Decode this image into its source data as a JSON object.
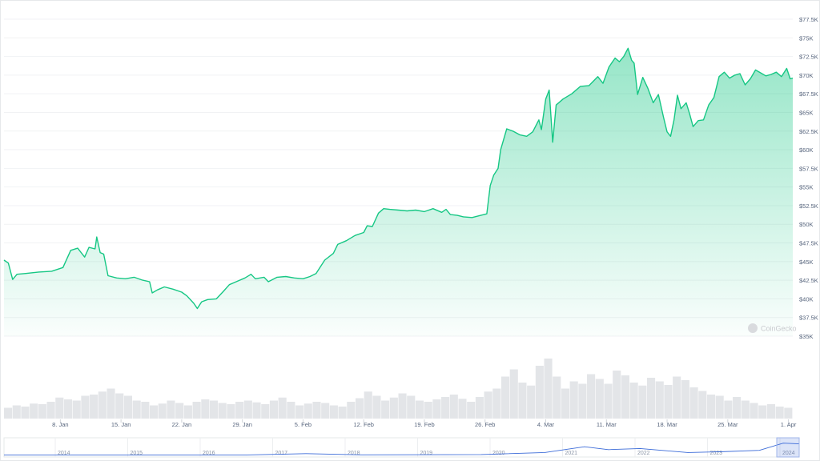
{
  "chart_data": {
    "type": "area",
    "title": "",
    "xlabel": "",
    "ylabel": "",
    "ylim": [
      35000,
      77500
    ],
    "y_ticks": [
      "$35K",
      "$37.5K",
      "$40K",
      "$42.5K",
      "$45K",
      "$47.5K",
      "$50K",
      "$52.5K",
      "$55K",
      "$57.5K",
      "$60K",
      "$62.5K",
      "$65K",
      "$67.5K",
      "$70K",
      "$72.5K",
      "$75K",
      "$77.5K"
    ],
    "y_tick_values": [
      35000,
      37500,
      40000,
      42500,
      45000,
      47500,
      50000,
      52500,
      55000,
      57500,
      60000,
      62500,
      65000,
      67500,
      70000,
      72500,
      75000,
      77500
    ],
    "x_ticks": [
      {
        "label": "8. Jan",
        "day": 8
      },
      {
        "label": "15. Jan",
        "day": 15
      },
      {
        "label": "22. Jan",
        "day": 22
      },
      {
        "label": "29. Jan",
        "day": 29
      },
      {
        "label": "5. Feb",
        "day": 36
      },
      {
        "label": "12. Feb",
        "day": 43
      },
      {
        "label": "19. Feb",
        "day": 50
      },
      {
        "label": "26. Feb",
        "day": 57
      },
      {
        "label": "4. Mar",
        "day": 64
      },
      {
        "label": "11. Mar",
        "day": 71
      },
      {
        "label": "18. Mar",
        "day": 78
      },
      {
        "label": "25. Mar",
        "day": 85
      },
      {
        "label": "1. Apr",
        "day": 92
      }
    ],
    "x_range_days": [
      1.5,
      92.5
    ],
    "series": [
      {
        "color": "#16c784",
        "points": [
          [
            1.5,
            45200
          ],
          [
            2.0,
            44800
          ],
          [
            2.5,
            42600
          ],
          [
            3.0,
            43300
          ],
          [
            4.0,
            43400
          ],
          [
            5.5,
            43600
          ],
          [
            7.0,
            43700
          ],
          [
            7.8,
            44000
          ],
          [
            8.3,
            44200
          ],
          [
            9.2,
            46500
          ],
          [
            10.0,
            46800
          ],
          [
            10.8,
            45600
          ],
          [
            11.3,
            46900
          ],
          [
            12.0,
            46700
          ],
          [
            12.2,
            48300
          ],
          [
            12.6,
            46200
          ],
          [
            13.0,
            46000
          ],
          [
            13.5,
            43100
          ],
          [
            14.5,
            42800
          ],
          [
            15.5,
            42700
          ],
          [
            16.5,
            42900
          ],
          [
            17.5,
            42500
          ],
          [
            18.3,
            42300
          ],
          [
            18.6,
            40800
          ],
          [
            19.2,
            41200
          ],
          [
            20.0,
            41600
          ],
          [
            21.0,
            41300
          ],
          [
            22.0,
            40900
          ],
          [
            22.6,
            40400
          ],
          [
            23.4,
            39400
          ],
          [
            23.8,
            38700
          ],
          [
            24.3,
            39600
          ],
          [
            25.0,
            39900
          ],
          [
            26.0,
            40000
          ],
          [
            26.8,
            41000
          ],
          [
            27.5,
            41900
          ],
          [
            28.5,
            42400
          ],
          [
            29.3,
            42800
          ],
          [
            30.0,
            43300
          ],
          [
            30.5,
            42700
          ],
          [
            31.5,
            42900
          ],
          [
            32.0,
            42300
          ],
          [
            33.0,
            42900
          ],
          [
            34.0,
            43000
          ],
          [
            35.0,
            42800
          ],
          [
            36.0,
            42700
          ],
          [
            36.8,
            43000
          ],
          [
            37.5,
            43400
          ],
          [
            38.5,
            45200
          ],
          [
            39.5,
            46100
          ],
          [
            40.0,
            47300
          ],
          [
            41.0,
            47800
          ],
          [
            42.0,
            48500
          ],
          [
            43.0,
            48900
          ],
          [
            43.4,
            49800
          ],
          [
            44.0,
            49700
          ],
          [
            44.7,
            51500
          ],
          [
            45.3,
            52100
          ],
          [
            46.0,
            52000
          ],
          [
            47.0,
            51900
          ],
          [
            48.0,
            51800
          ],
          [
            49.0,
            51900
          ],
          [
            50.0,
            51700
          ],
          [
            51.0,
            52100
          ],
          [
            52.0,
            51600
          ],
          [
            52.5,
            52000
          ],
          [
            53.0,
            51300
          ],
          [
            53.8,
            51200
          ],
          [
            54.5,
            51000
          ],
          [
            55.5,
            50900
          ],
          [
            56.5,
            51200
          ],
          [
            57.2,
            51400
          ],
          [
            57.6,
            55200
          ],
          [
            58.0,
            56600
          ],
          [
            58.5,
            57500
          ],
          [
            58.8,
            60000
          ],
          [
            59.5,
            62800
          ],
          [
            60.2,
            62500
          ],
          [
            61.0,
            62000
          ],
          [
            61.8,
            61800
          ],
          [
            62.5,
            62400
          ],
          [
            63.2,
            64000
          ],
          [
            63.5,
            62700
          ],
          [
            64.0,
            66800
          ],
          [
            64.4,
            68000
          ],
          [
            64.8,
            61000
          ],
          [
            65.2,
            66000
          ],
          [
            66.0,
            66800
          ],
          [
            67.0,
            67500
          ],
          [
            68.0,
            68500
          ],
          [
            69.0,
            68600
          ],
          [
            70.0,
            69800
          ],
          [
            70.6,
            68900
          ],
          [
            71.3,
            71100
          ],
          [
            72.0,
            72300
          ],
          [
            72.5,
            71800
          ],
          [
            73.0,
            72500
          ],
          [
            73.5,
            73600
          ],
          [
            73.9,
            72000
          ],
          [
            74.2,
            71600
          ],
          [
            74.6,
            67400
          ],
          [
            75.2,
            69700
          ],
          [
            75.8,
            68200
          ],
          [
            76.4,
            66300
          ],
          [
            77.0,
            67400
          ],
          [
            77.6,
            64300
          ],
          [
            78.0,
            62400
          ],
          [
            78.4,
            61800
          ],
          [
            78.8,
            64000
          ],
          [
            79.2,
            67300
          ],
          [
            79.6,
            65500
          ],
          [
            80.2,
            66300
          ],
          [
            80.6,
            64800
          ],
          [
            81.0,
            63100
          ],
          [
            81.6,
            63900
          ],
          [
            82.2,
            64000
          ],
          [
            82.8,
            66000
          ],
          [
            83.4,
            67000
          ],
          [
            84.0,
            69800
          ],
          [
            84.6,
            70400
          ],
          [
            85.2,
            69600
          ],
          [
            85.8,
            70000
          ],
          [
            86.4,
            70200
          ],
          [
            87.0,
            68700
          ],
          [
            87.6,
            69500
          ],
          [
            88.2,
            70700
          ],
          [
            88.8,
            70300
          ],
          [
            89.4,
            69900
          ],
          [
            90.0,
            70100
          ],
          [
            90.6,
            70400
          ],
          [
            91.2,
            69800
          ],
          [
            91.8,
            70900
          ],
          [
            92.2,
            69500
          ],
          [
            92.5,
            69600
          ]
        ]
      }
    ],
    "volume_series": [
      0.18,
      0.22,
      0.2,
      0.25,
      0.24,
      0.28,
      0.35,
      0.32,
      0.3,
      0.38,
      0.4,
      0.45,
      0.5,
      0.42,
      0.38,
      0.3,
      0.28,
      0.22,
      0.25,
      0.3,
      0.26,
      0.22,
      0.28,
      0.32,
      0.3,
      0.26,
      0.24,
      0.28,
      0.3,
      0.27,
      0.24,
      0.3,
      0.35,
      0.28,
      0.22,
      0.25,
      0.28,
      0.26,
      0.22,
      0.2,
      0.28,
      0.34,
      0.45,
      0.38,
      0.3,
      0.35,
      0.42,
      0.38,
      0.3,
      0.28,
      0.32,
      0.36,
      0.4,
      0.33,
      0.28,
      0.36,
      0.45,
      0.5,
      0.7,
      0.82,
      0.6,
      0.55,
      0.88,
      1.0,
      0.7,
      0.5,
      0.62,
      0.58,
      0.74,
      0.66,
      0.58,
      0.8,
      0.72,
      0.6,
      0.55,
      0.68,
      0.62,
      0.56,
      0.7,
      0.64,
      0.52,
      0.46,
      0.4,
      0.38,
      0.3,
      0.36,
      0.3,
      0.26,
      0.22,
      0.24,
      0.2,
      0.18
    ],
    "watermark": "CoinGecko",
    "navigator": {
      "years": [
        "2014",
        "2015",
        "2016",
        "2017",
        "2018",
        "2019",
        "2020",
        "2021",
        "2022",
        "2023",
        "2024"
      ]
    }
  }
}
